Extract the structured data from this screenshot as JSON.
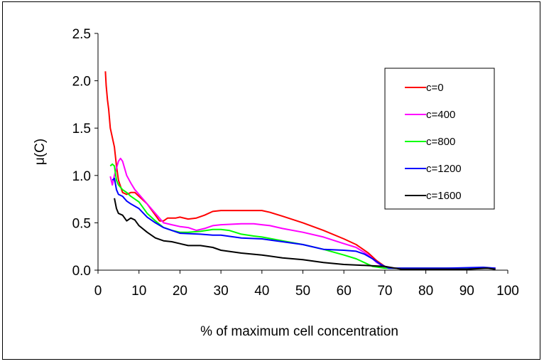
{
  "chart_data": {
    "type": "line",
    "title": "",
    "xlabel": "% of maximum cell concentration",
    "ylabel": "μ(C)",
    "xlim": [
      0,
      100
    ],
    "ylim": [
      0,
      2.5
    ],
    "xticks": [
      0,
      10,
      20,
      30,
      40,
      50,
      60,
      70,
      80,
      90,
      100
    ],
    "yticks": [
      0.0,
      0.5,
      1.0,
      1.5,
      2.0,
      2.5
    ],
    "xtick_labels": [
      "0",
      "10",
      "20",
      "30",
      "40",
      "50",
      "60",
      "70",
      "80",
      "90",
      "100"
    ],
    "ytick_labels": [
      "0.0",
      "0.5",
      "1.0",
      "1.5",
      "2.0",
      "2.5"
    ],
    "grid": false,
    "legend_position": "right",
    "series": [
      {
        "name": "c=0",
        "color": "#ff0000",
        "points": [
          [
            1.8,
            2.1
          ],
          [
            2.0,
            1.95
          ],
          [
            2.3,
            1.8
          ],
          [
            2.6,
            1.7
          ],
          [
            3.0,
            1.5
          ],
          [
            3.5,
            1.4
          ],
          [
            4.0,
            1.3
          ],
          [
            4.5,
            1.1
          ],
          [
            5.0,
            0.95
          ],
          [
            6.0,
            0.82
          ],
          [
            7.0,
            0.8
          ],
          [
            8.0,
            0.82
          ],
          [
            9.0,
            0.82
          ],
          [
            10,
            0.78
          ],
          [
            12,
            0.7
          ],
          [
            14,
            0.58
          ],
          [
            15,
            0.52
          ],
          [
            16,
            0.52
          ],
          [
            17,
            0.55
          ],
          [
            19,
            0.55
          ],
          [
            20,
            0.56
          ],
          [
            22,
            0.54
          ],
          [
            24,
            0.55
          ],
          [
            26,
            0.58
          ],
          [
            28,
            0.62
          ],
          [
            30,
            0.63
          ],
          [
            35,
            0.63
          ],
          [
            40,
            0.63
          ],
          [
            42,
            0.61
          ],
          [
            45,
            0.57
          ],
          [
            50,
            0.5
          ],
          [
            55,
            0.42
          ],
          [
            60,
            0.33
          ],
          [
            63,
            0.27
          ],
          [
            66,
            0.18
          ],
          [
            68,
            0.1
          ],
          [
            70,
            0.04
          ],
          [
            72,
            0.02
          ],
          [
            80,
            0.02
          ],
          [
            90,
            0.02
          ],
          [
            97,
            0.02
          ]
        ]
      },
      {
        "name": "c=400",
        "color": "#ff00ff",
        "points": [
          [
            3.0,
            0.99
          ],
          [
            3.5,
            0.9
          ],
          [
            4.0,
            1.0
          ],
          [
            5.0,
            1.15
          ],
          [
            5.5,
            1.18
          ],
          [
            6.0,
            1.15
          ],
          [
            7.0,
            1.0
          ],
          [
            8.0,
            0.92
          ],
          [
            9.0,
            0.85
          ],
          [
            10,
            0.8
          ],
          [
            12,
            0.7
          ],
          [
            14,
            0.6
          ],
          [
            16,
            0.5
          ],
          [
            18,
            0.48
          ],
          [
            20,
            0.46
          ],
          [
            22,
            0.45
          ],
          [
            24,
            0.42
          ],
          [
            26,
            0.44
          ],
          [
            28,
            0.47
          ],
          [
            30,
            0.48
          ],
          [
            35,
            0.49
          ],
          [
            38,
            0.49
          ],
          [
            40,
            0.48
          ],
          [
            42,
            0.47
          ],
          [
            45,
            0.44
          ],
          [
            50,
            0.4
          ],
          [
            55,
            0.35
          ],
          [
            60,
            0.28
          ],
          [
            63,
            0.24
          ],
          [
            66,
            0.16
          ],
          [
            68,
            0.08
          ],
          [
            70,
            0.03
          ],
          [
            73,
            0.02
          ],
          [
            80,
            0.02
          ],
          [
            90,
            0.02
          ],
          [
            96,
            0.02
          ]
        ]
      },
      {
        "name": "c=800",
        "color": "#00ff00",
        "points": [
          [
            3.0,
            1.1
          ],
          [
            3.5,
            1.12
          ],
          [
            4.0,
            1.1
          ],
          [
            4.5,
            0.95
          ],
          [
            5.0,
            0.9
          ],
          [
            6.0,
            0.85
          ],
          [
            7.0,
            0.82
          ],
          [
            8.0,
            0.78
          ],
          [
            10,
            0.72
          ],
          [
            12,
            0.6
          ],
          [
            14,
            0.52
          ],
          [
            16,
            0.45
          ],
          [
            18,
            0.42
          ],
          [
            20,
            0.4
          ],
          [
            22,
            0.4
          ],
          [
            25,
            0.41
          ],
          [
            28,
            0.43
          ],
          [
            30,
            0.43
          ],
          [
            32,
            0.42
          ],
          [
            35,
            0.38
          ],
          [
            38,
            0.36
          ],
          [
            40,
            0.35
          ],
          [
            45,
            0.31
          ],
          [
            50,
            0.27
          ],
          [
            55,
            0.22
          ],
          [
            60,
            0.16
          ],
          [
            63,
            0.12
          ],
          [
            65,
            0.08
          ],
          [
            67,
            0.04
          ],
          [
            70,
            0.02
          ],
          [
            75,
            0.02
          ],
          [
            85,
            0.02
          ],
          [
            96,
            0.02
          ]
        ]
      },
      {
        "name": "c=1200",
        "color": "#0000ff",
        "points": [
          [
            3.5,
            0.95
          ],
          [
            4.0,
            0.97
          ],
          [
            4.5,
            0.85
          ],
          [
            5.0,
            0.8
          ],
          [
            6.0,
            0.78
          ],
          [
            7.0,
            0.73
          ],
          [
            8.0,
            0.7
          ],
          [
            10,
            0.65
          ],
          [
            12,
            0.56
          ],
          [
            14,
            0.5
          ],
          [
            16,
            0.45
          ],
          [
            18,
            0.42
          ],
          [
            20,
            0.39
          ],
          [
            25,
            0.38
          ],
          [
            28,
            0.37
          ],
          [
            30,
            0.37
          ],
          [
            35,
            0.34
          ],
          [
            40,
            0.33
          ],
          [
            45,
            0.3
          ],
          [
            50,
            0.27
          ],
          [
            55,
            0.22
          ],
          [
            60,
            0.21
          ],
          [
            63,
            0.2
          ],
          [
            65,
            0.17
          ],
          [
            67,
            0.12
          ],
          [
            69,
            0.06
          ],
          [
            71,
            0.02
          ],
          [
            75,
            0.02
          ],
          [
            85,
            0.02
          ],
          [
            94,
            0.03
          ],
          [
            97,
            0.02
          ]
        ]
      },
      {
        "name": "c=1600",
        "color": "#000000",
        "points": [
          [
            4.0,
            0.76
          ],
          [
            4.5,
            0.65
          ],
          [
            5.0,
            0.6
          ],
          [
            6.0,
            0.58
          ],
          [
            7.0,
            0.52
          ],
          [
            8.0,
            0.55
          ],
          [
            9.0,
            0.53
          ],
          [
            10,
            0.47
          ],
          [
            12,
            0.4
          ],
          [
            14,
            0.34
          ],
          [
            16,
            0.31
          ],
          [
            18,
            0.3
          ],
          [
            20,
            0.28
          ],
          [
            22,
            0.26
          ],
          [
            25,
            0.26
          ],
          [
            28,
            0.24
          ],
          [
            30,
            0.21
          ],
          [
            35,
            0.18
          ],
          [
            40,
            0.16
          ],
          [
            45,
            0.13
          ],
          [
            50,
            0.11
          ],
          [
            55,
            0.08
          ],
          [
            60,
            0.06
          ],
          [
            65,
            0.05
          ],
          [
            70,
            0.04
          ],
          [
            74,
            0.01
          ],
          [
            80,
            0.01
          ],
          [
            90,
            0.01
          ],
          [
            95,
            0.02
          ],
          [
            97,
            0.01
          ]
        ]
      }
    ]
  }
}
